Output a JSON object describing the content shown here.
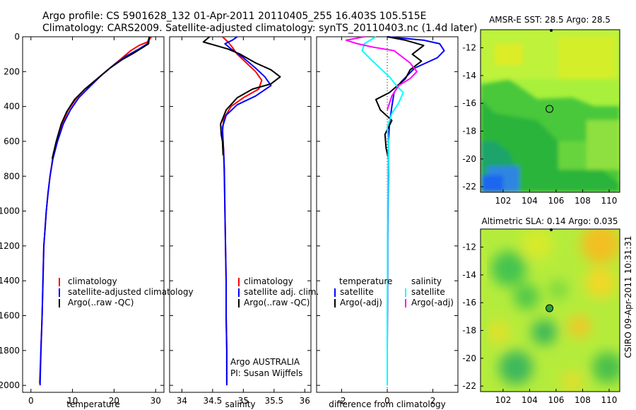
{
  "header": {
    "line1": "Argo profile: CS 5901628_132 01-Apr-2011 20110405_255 16.403S 105.515E",
    "line2": "Climatology: CARS2009. Satellite-adjusted climatology: synTS_20110403.nc (1.4d later)"
  },
  "side_stamp": "CSIRO 09-Apr-2011 10:31:31",
  "colors": {
    "red": "#ff0000",
    "blue": "#0000ff",
    "black": "#000000",
    "cyan": "#00ffff",
    "magenta": "#ff00ff"
  },
  "chart_data": [
    {
      "type": "line",
      "xlabel": "temperature",
      "ylim": [
        2040,
        0
      ],
      "xlim": [
        -2,
        32
      ],
      "xticks": [
        0,
        10,
        20,
        30
      ],
      "yticks": [
        0,
        200,
        400,
        600,
        800,
        1000,
        1200,
        1400,
        1600,
        1800,
        2000
      ],
      "legend": {
        "placement": "bottom-center",
        "entries": [
          "climatology",
          "satellite-adjusted climatology",
          "Argo(..raw -QC)"
        ]
      },
      "series": [
        {
          "name": "climatology",
          "color": "red",
          "points": [
            [
              29,
              0
            ],
            [
              28,
              30
            ],
            [
              26,
              50
            ],
            [
              24,
              80
            ],
            [
              22,
              120
            ],
            [
              19,
              180
            ],
            [
              16,
              240
            ],
            [
              13,
              300
            ],
            [
              11,
              350
            ],
            [
              9,
              420
            ],
            [
              7.5,
              500
            ],
            [
              6.2,
              600
            ],
            [
              5.2,
              700
            ],
            [
              4.6,
              800
            ],
            [
              4.1,
              900
            ],
            [
              3.7,
              1000
            ],
            [
              3.4,
              1100
            ],
            [
              3.1,
              1200
            ],
            [
              2.9,
              1400
            ],
            [
              2.7,
              1600
            ],
            [
              2.4,
              1800
            ],
            [
              2.1,
              1990
            ]
          ]
        },
        {
          "name": "satellite-adjusted climatology",
          "color": "blue",
          "points": [
            [
              28.5,
              0
            ],
            [
              28,
              40
            ],
            [
              26,
              70
            ],
            [
              23,
              110
            ],
            [
              20,
              160
            ],
            [
              17,
              220
            ],
            [
              14,
              290
            ],
            [
              11.5,
              350
            ],
            [
              9.5,
              420
            ],
            [
              7.8,
              500
            ],
            [
              6.4,
              600
            ],
            [
              5.3,
              700
            ],
            [
              4.6,
              800
            ],
            [
              4.1,
              900
            ],
            [
              3.7,
              1000
            ],
            [
              3.4,
              1100
            ],
            [
              3.1,
              1200
            ],
            [
              2.9,
              1400
            ],
            [
              2.7,
              1600
            ],
            [
              2.4,
              1800
            ],
            [
              2.2,
              2000
            ]
          ]
        },
        {
          "name": "Argo(..raw -QC)",
          "color": "black",
          "points": [
            [
              28.5,
              0
            ],
            [
              28.3,
              40
            ],
            [
              27,
              60
            ],
            [
              25,
              90
            ],
            [
              22,
              130
            ],
            [
              19,
              180
            ],
            [
              16,
              240
            ],
            [
              13,
              300
            ],
            [
              10.5,
              360
            ],
            [
              8.6,
              430
            ],
            [
              7.3,
              500
            ],
            [
              6.1,
              600
            ],
            [
              5.1,
              700
            ]
          ]
        }
      ]
    },
    {
      "type": "line",
      "xlabel": "salinity",
      "ylim": [
        2040,
        0
      ],
      "xlim": [
        33.8,
        36.1
      ],
      "xticks": [
        34,
        34.5,
        35,
        35.5,
        36
      ],
      "legend": {
        "placement": "bottom-center",
        "entries": [
          "climatology",
          "satellite adj. clim.",
          "Argo(..raw -QC)"
        ]
      },
      "annotations": [
        "Argo AUSTRALIA",
        "PI: Susan Wijffels"
      ],
      "series": [
        {
          "name": "climatology",
          "color": "red",
          "points": [
            [
              34.66,
              0
            ],
            [
              34.75,
              30
            ],
            [
              34.82,
              60
            ],
            [
              34.9,
              100
            ],
            [
              35.05,
              150
            ],
            [
              35.2,
              200
            ],
            [
              35.3,
              250
            ],
            [
              35.25,
              300
            ],
            [
              35.0,
              350
            ],
            [
              34.8,
              400
            ],
            [
              34.68,
              470
            ],
            [
              34.66,
              550
            ],
            [
              34.68,
              650
            ],
            [
              34.69,
              800
            ],
            [
              34.7,
              1000
            ],
            [
              34.71,
              1200
            ],
            [
              34.72,
              1400
            ],
            [
              34.72,
              1600
            ],
            [
              34.73,
              1800
            ],
            [
              34.73,
              1990
            ]
          ]
        },
        {
          "name": "satellite adj. clim.",
          "color": "blue",
          "points": [
            [
              34.9,
              0
            ],
            [
              34.82,
              20
            ],
            [
              34.7,
              40
            ],
            [
              34.8,
              70
            ],
            [
              35.0,
              120
            ],
            [
              35.2,
              180
            ],
            [
              35.35,
              230
            ],
            [
              35.45,
              280
            ],
            [
              35.2,
              340
            ],
            [
              34.9,
              390
            ],
            [
              34.72,
              450
            ],
            [
              34.66,
              520
            ],
            [
              34.67,
              600
            ],
            [
              34.69,
              750
            ],
            [
              34.7,
              1000
            ],
            [
              34.71,
              1200
            ],
            [
              34.72,
              1400
            ],
            [
              34.72,
              1600
            ],
            [
              34.73,
              1800
            ],
            [
              34.73,
              2000
            ]
          ]
        },
        {
          "name": "Argo(..raw -QC)",
          "color": "black",
          "points": [
            [
              34.45,
              0
            ],
            [
              34.35,
              30
            ],
            [
              34.55,
              50
            ],
            [
              34.75,
              70
            ],
            [
              34.95,
              100
            ],
            [
              35.2,
              150
            ],
            [
              35.45,
              190
            ],
            [
              35.6,
              230
            ],
            [
              35.45,
              270
            ],
            [
              35.15,
              300
            ],
            [
              34.9,
              350
            ],
            [
              34.72,
              420
            ],
            [
              34.63,
              500
            ],
            [
              34.64,
              560
            ],
            [
              34.66,
              600
            ],
            [
              34.67,
              680
            ]
          ]
        }
      ]
    },
    {
      "type": "line",
      "xlabel": "difference from climatology",
      "ylim": [
        2040,
        0
      ],
      "xlim": [
        -3.1,
        3.1
      ],
      "xticks": [
        -2,
        0,
        2
      ],
      "legend": {
        "placement": "bottom-center",
        "entries": [
          "temperature",
          "satellite",
          "Argo(-adj)",
          "salinity",
          "satellite",
          "Argo(-adj)"
        ]
      },
      "series": [
        {
          "name": "satellite",
          "color": "blue",
          "points": [
            [
              0,
              0
            ],
            [
              1.6,
              20
            ],
            [
              2.3,
              40
            ],
            [
              2.5,
              80
            ],
            [
              2.2,
              120
            ],
            [
              1.2,
              180
            ],
            [
              0.6,
              260
            ],
            [
              0.3,
              320
            ],
            [
              0.2,
              400
            ],
            [
              0.1,
              500
            ],
            [
              0.05,
              600
            ],
            [
              0.05,
              800
            ],
            [
              0.03,
              1000
            ],
            [
              0.02,
              1200
            ],
            [
              0.02,
              1400
            ],
            [
              0.01,
              1600
            ],
            [
              0.0,
              1800
            ],
            [
              0.0,
              2000
            ]
          ]
        },
        {
          "name": "Argo(-adj)",
          "color": "black",
          "points": [
            [
              0,
              0
            ],
            [
              0.8,
              20
            ],
            [
              1.6,
              50
            ],
            [
              1.1,
              100
            ],
            [
              1.5,
              140
            ],
            [
              1.0,
              190
            ],
            [
              0.8,
              240
            ],
            [
              0.1,
              320
            ],
            [
              -0.5,
              360
            ],
            [
              -0.3,
              420
            ],
            [
              0.2,
              480
            ],
            [
              -0.1,
              560
            ],
            [
              -0.05,
              640
            ],
            [
              0.05,
              700
            ]
          ]
        },
        {
          "name": "satellite",
          "color": "cyan",
          "points": [
            [
              -0.5,
              0
            ],
            [
              -1.0,
              40
            ],
            [
              -1.1,
              80
            ],
            [
              -0.8,
              120
            ],
            [
              -0.4,
              170
            ],
            [
              0.1,
              230
            ],
            [
              0.4,
              280
            ],
            [
              0.7,
              320
            ],
            [
              0.5,
              380
            ],
            [
              0.2,
              440
            ],
            [
              0.0,
              520
            ],
            [
              0.05,
              600
            ],
            [
              0.03,
              800
            ],
            [
              0.02,
              1000
            ],
            [
              0.01,
              1200
            ],
            [
              0.01,
              1400
            ],
            [
              0.0,
              1600
            ],
            [
              0.0,
              1800
            ],
            [
              0.0,
              2000
            ]
          ]
        },
        {
          "name": "Argo(-adj)",
          "color": "magenta",
          "points": [
            [
              -1.0,
              0
            ],
            [
              -1.8,
              20
            ],
            [
              -1.3,
              40
            ],
            [
              -0.6,
              60
            ],
            [
              0.3,
              80
            ],
            [
              1.0,
              150
            ],
            [
              1.3,
              200
            ],
            [
              1.0,
              240
            ],
            [
              0.5,
              280
            ],
            [
              0.2,
              340
            ],
            [
              0.0,
              420
            ]
          ]
        }
      ]
    },
    {
      "type": "heatmap",
      "title": "AMSR-E SST: 28.5 Argo: 28.5",
      "xlim": [
        100.3,
        110.8
      ],
      "ylim": [
        -22.4,
        -10.7
      ],
      "xticks": [
        102,
        104,
        106,
        108,
        110
      ],
      "yticks": [
        -12,
        -14,
        -16,
        -18,
        -20,
        -22
      ],
      "marker": {
        "x": 105.5,
        "y": -16.4
      },
      "colormap": "jet"
    },
    {
      "type": "heatmap",
      "title": "Altimetric SLA: 0.14 Argo: 0.035",
      "xlim": [
        100.3,
        110.8
      ],
      "ylim": [
        -22.4,
        -10.7
      ],
      "xticks": [
        102,
        104,
        106,
        108,
        110
      ],
      "yticks": [
        -12,
        -14,
        -16,
        -18,
        -20,
        -22
      ],
      "marker": {
        "x": 105.5,
        "y": -16.4
      },
      "colormap": "jet"
    }
  ]
}
